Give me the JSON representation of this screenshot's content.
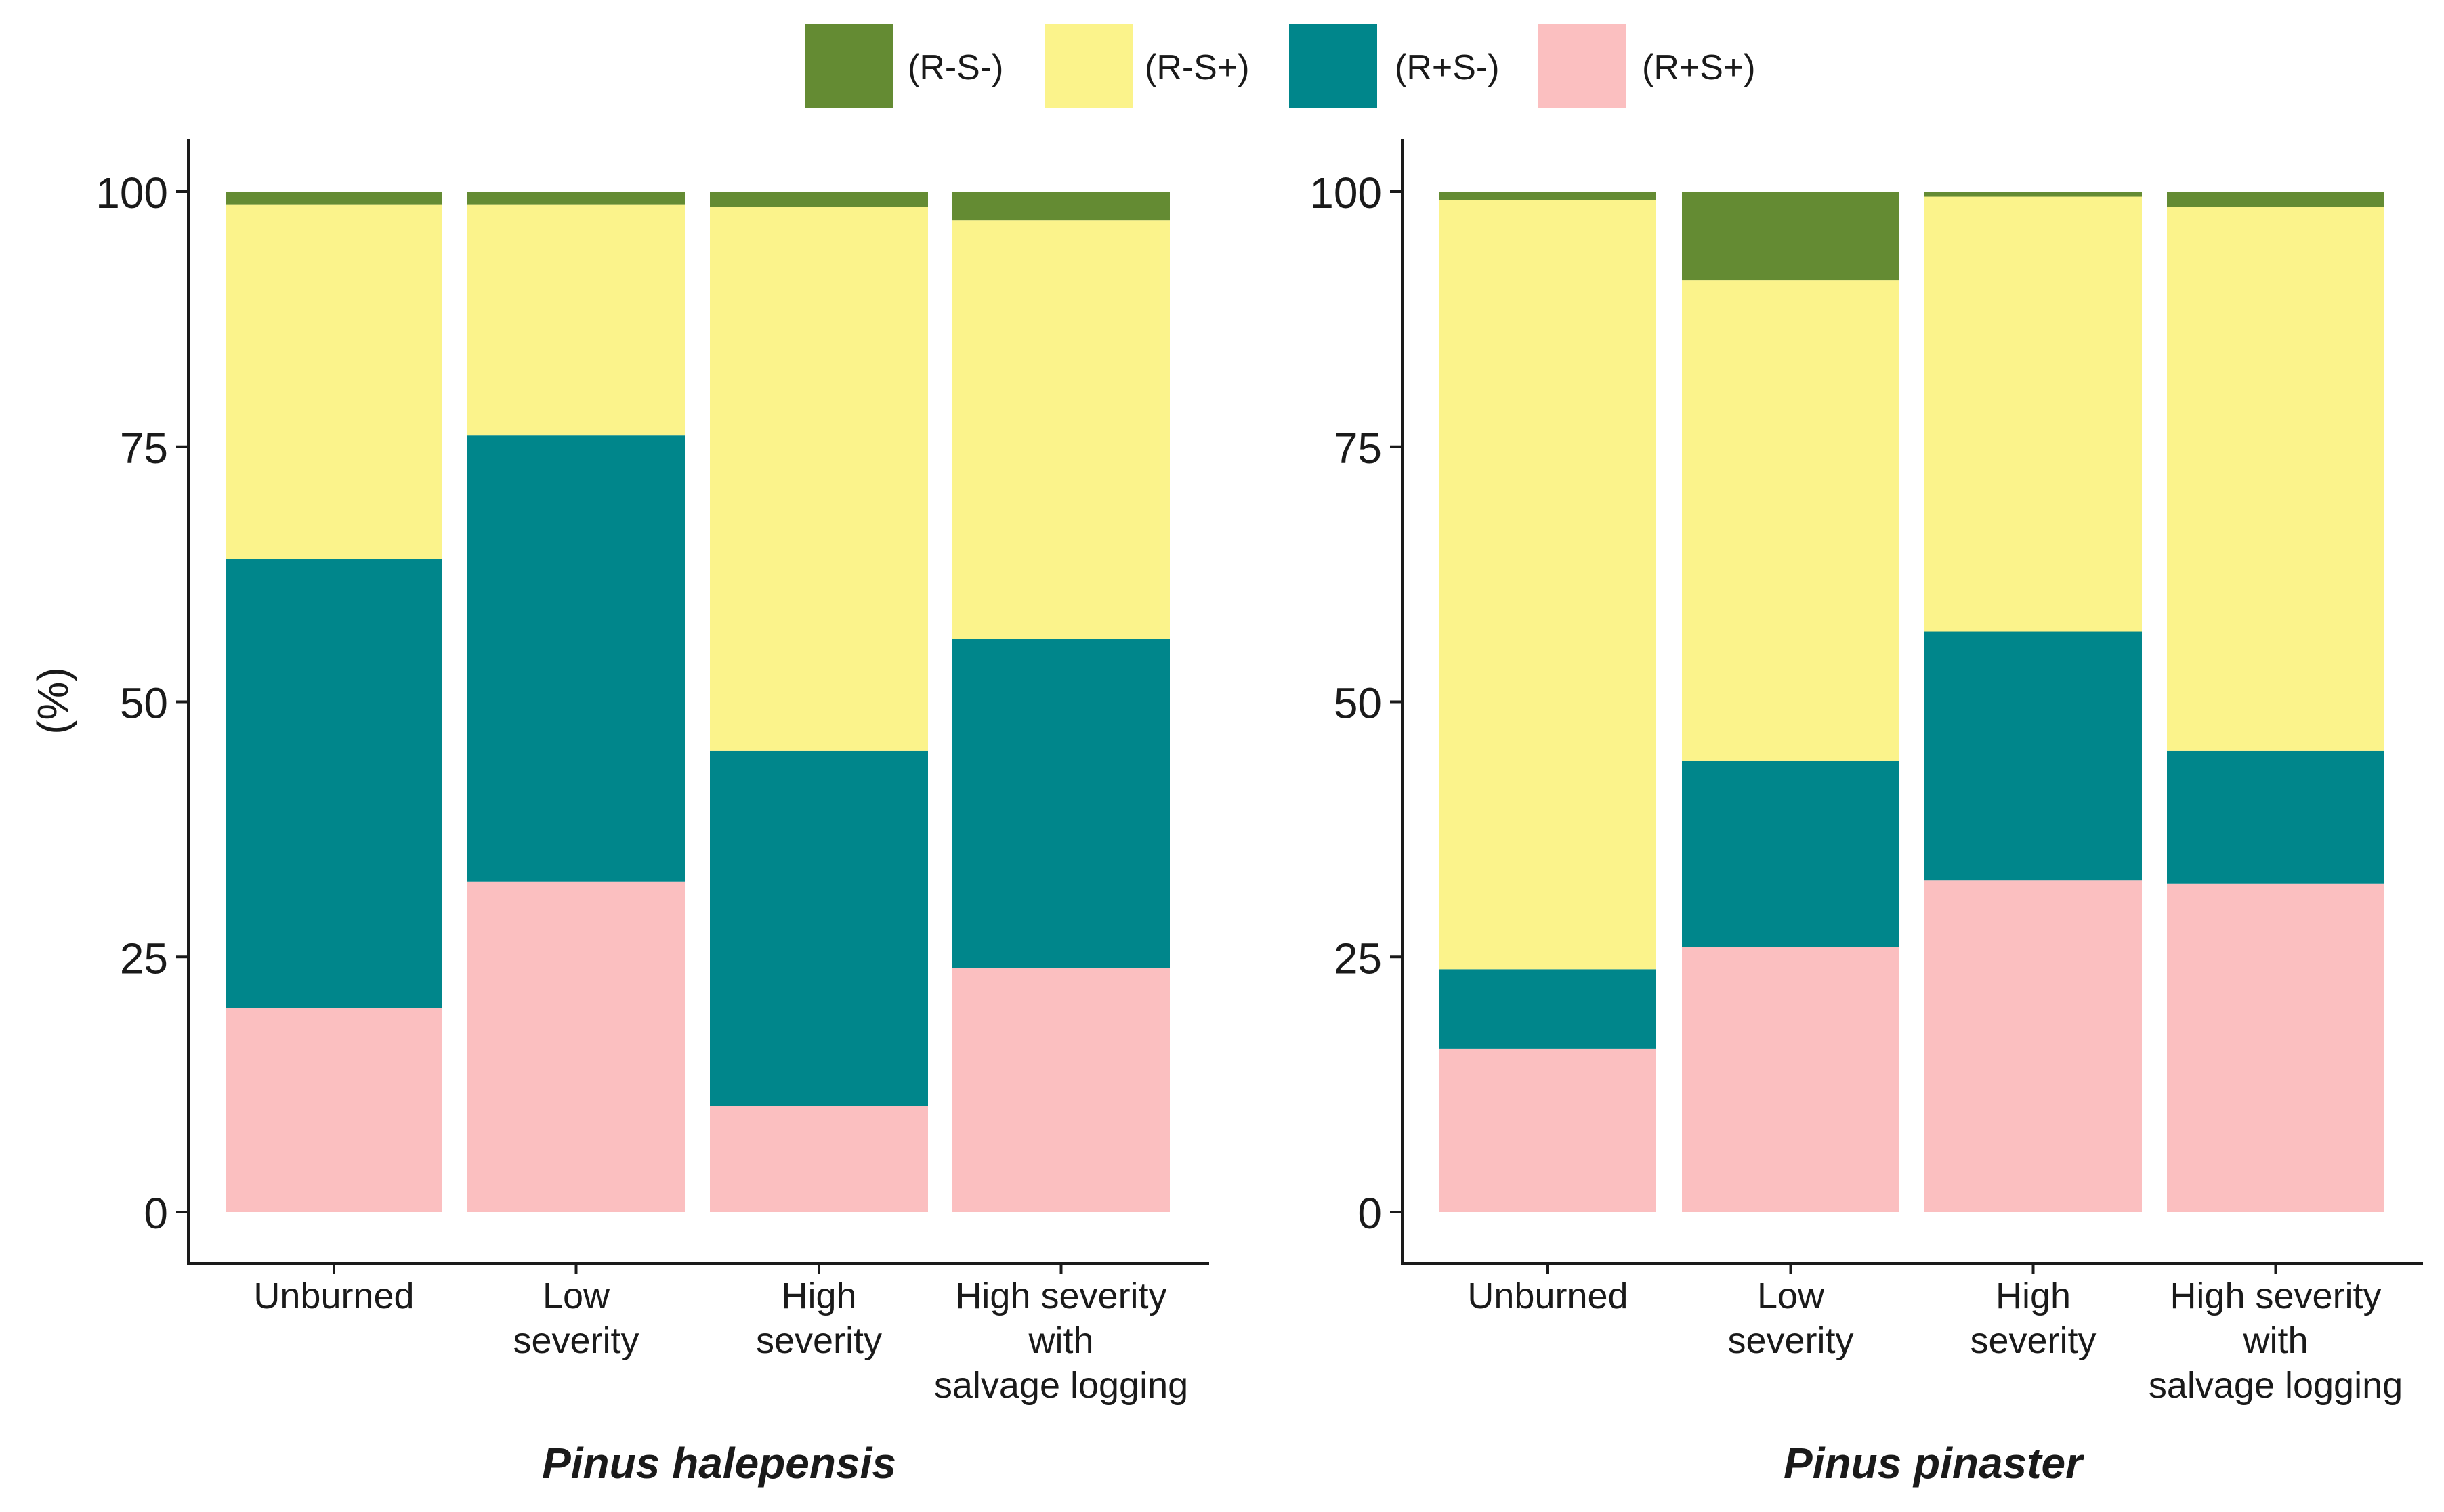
{
  "chart_data": {
    "type": "bar",
    "stacked": true,
    "legend_position": "top-center",
    "ylabel": "(%)",
    "ylim": [
      0,
      100
    ],
    "yticks": [
      0,
      25,
      50,
      75,
      100
    ],
    "categories": [
      [
        "Unburned"
      ],
      [
        "Low",
        "severity"
      ],
      [
        "High",
        "severity"
      ],
      [
        "High severity",
        "with",
        "salvage logging"
      ]
    ],
    "series_styles": [
      {
        "name": "(R+S+)",
        "color": "#FBBFC0"
      },
      {
        "name": "(R+S-)",
        "color": "#00868B"
      },
      {
        "name": "(R-S+)",
        "color": "#FBF38B"
      },
      {
        "name": "(R-S-)",
        "color": "#648B33"
      }
    ],
    "legend": [
      {
        "name": "(R-S-)",
        "color": "#648B33"
      },
      {
        "name": "(R-S+)",
        "color": "#FBF38B"
      },
      {
        "name": "(R+S-)",
        "color": "#00868B"
      },
      {
        "name": "(R+S+)",
        "color": "#FBBFC0"
      }
    ],
    "panels": [
      {
        "title": "Pinus halepensis",
        "series": [
          {
            "name": "(R+S+)",
            "values": [
              20,
              32.4,
              10.4,
              23.9
            ]
          },
          {
            "name": "(R+S-)",
            "values": [
              44,
              43.7,
              34.8,
              32.3
            ]
          },
          {
            "name": "(R-S+)",
            "values": [
              34.7,
              22.6,
              53.3,
              41
            ]
          },
          {
            "name": "(R-S-)",
            "values": [
              1.3,
              1.3,
              1.5,
              2.8
            ]
          }
        ]
      },
      {
        "title": "Pinus pinaster",
        "series": [
          {
            "name": "(R+S+)",
            "values": [
              16,
              26,
              32.5,
              32.2
            ]
          },
          {
            "name": "(R+S-)",
            "values": [
              7.8,
              18.2,
              24.4,
              13
            ]
          },
          {
            "name": "(R-S+)",
            "values": [
              75.4,
              47.1,
              42.6,
              53.3
            ]
          },
          {
            "name": "(R-S-)",
            "values": [
              0.8,
              8.7,
              0.5,
              1.5
            ]
          }
        ]
      }
    ]
  }
}
